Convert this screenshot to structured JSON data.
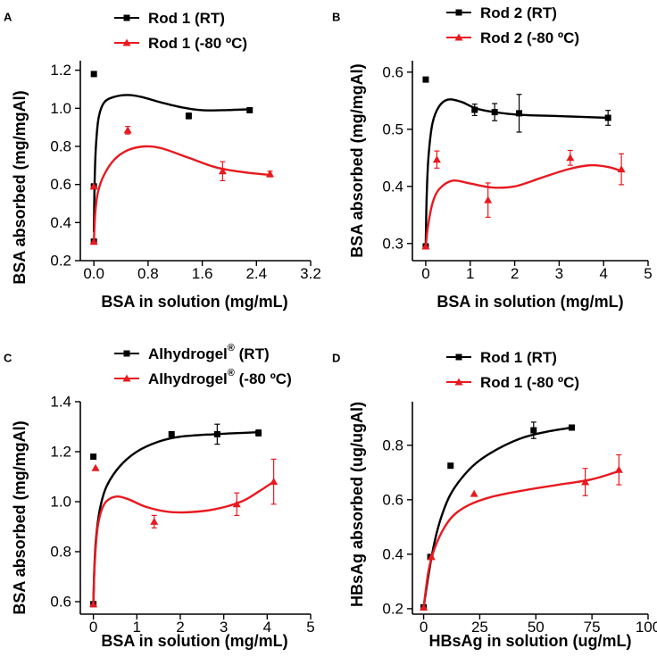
{
  "colors": {
    "rt": "#000000",
    "cold": "#e8191f"
  },
  "chart_data": [
    {
      "type": "scatter",
      "panel_label": "A",
      "xlabel": "BSA in solution (mg/mL)",
      "ylabel": "BSA absorbed (mg/mgAl)",
      "xlim": [
        -0.2,
        3.2
      ],
      "ylim": [
        0.2,
        1.25
      ],
      "xticks": [
        0.0,
        0.8,
        1.6,
        2.4,
        3.2
      ],
      "xtick_labels": [
        "0.0",
        "0.8",
        "1.6",
        "2.4",
        "3.2"
      ],
      "yticks": [
        0.2,
        0.4,
        0.6,
        0.8,
        1.0,
        1.2
      ],
      "ytick_labels": [
        "0.2",
        "0.4",
        "0.6",
        "0.8",
        "1.0",
        "1.2"
      ],
      "series": [
        {
          "name": "Rod 1 (RT)",
          "label": "Rod 1 (RT)",
          "marker": "square",
          "color": "#000000",
          "points": [
            [
              0.0,
              1.18,
              0
            ],
            [
              0.0,
              0.59,
              0
            ],
            [
              0.0,
              0.3,
              0
            ],
            [
              1.4,
              0.96,
              0.015
            ],
            [
              2.3,
              0.99,
              0.005
            ]
          ],
          "fit": [
            [
              0.0,
              0.35
            ],
            [
              0.01,
              0.6
            ],
            [
              0.03,
              0.8
            ],
            [
              0.07,
              0.95
            ],
            [
              0.15,
              1.03
            ],
            [
              0.3,
              1.06
            ],
            [
              0.5,
              1.07
            ],
            [
              0.7,
              1.06
            ],
            [
              1.0,
              1.03
            ],
            [
              1.3,
              1.005
            ],
            [
              1.6,
              0.99
            ],
            [
              1.9,
              0.99
            ],
            [
              2.3,
              0.995
            ]
          ]
        },
        {
          "name": "Rod 1 (-80 ºC)",
          "label": "Rod 1 (-80 ºC)",
          "marker": "triangle",
          "color": "#e8191f",
          "points": [
            [
              0.0,
              0.3,
              0
            ],
            [
              0.0,
              0.59,
              0
            ],
            [
              0.5,
              0.885,
              0.02
            ],
            [
              1.9,
              0.67,
              0.05
            ],
            [
              2.6,
              0.655,
              0.015
            ]
          ],
          "fit": [
            [
              0.0,
              0.3
            ],
            [
              0.02,
              0.45
            ],
            [
              0.06,
              0.56
            ],
            [
              0.15,
              0.65
            ],
            [
              0.3,
              0.73
            ],
            [
              0.5,
              0.78
            ],
            [
              0.75,
              0.8
            ],
            [
              1.0,
              0.79
            ],
            [
              1.4,
              0.74
            ],
            [
              1.8,
              0.69
            ],
            [
              2.2,
              0.665
            ],
            [
              2.6,
              0.65
            ]
          ]
        }
      ]
    },
    {
      "type": "scatter",
      "panel_label": "B",
      "xlabel": "BSA in solution (mg/mL)",
      "ylabel": "BSA absorbed (mg/mgAl)",
      "xlim": [
        -0.3,
        5.0
      ],
      "ylim": [
        0.27,
        0.62
      ],
      "xticks": [
        0,
        1,
        2,
        3,
        4,
        5
      ],
      "xtick_labels": [
        "0",
        "1",
        "2",
        "3",
        "4",
        "5"
      ],
      "yticks": [
        0.3,
        0.4,
        0.5,
        0.6
      ],
      "ytick_labels": [
        "0.3",
        "0.4",
        "0.5",
        "0.6"
      ],
      "series": [
        {
          "name": "Rod 2 (RT)",
          "label": "Rod 2 (RT)",
          "marker": "square",
          "color": "#000000",
          "points": [
            [
              0.0,
              0.587,
              0
            ],
            [
              0.0,
              0.295,
              0
            ],
            [
              1.1,
              0.534,
              0.01
            ],
            [
              1.55,
              0.53,
              0.015
            ],
            [
              2.1,
              0.528,
              0.033
            ],
            [
              4.1,
              0.52,
              0.013
            ]
          ],
          "fit": [
            [
              0.0,
              0.3
            ],
            [
              0.02,
              0.38
            ],
            [
              0.06,
              0.45
            ],
            [
              0.15,
              0.51
            ],
            [
              0.3,
              0.54
            ],
            [
              0.5,
              0.552
            ],
            [
              0.8,
              0.548
            ],
            [
              1.2,
              0.535
            ],
            [
              2.0,
              0.526
            ],
            [
              3.0,
              0.523
            ],
            [
              4.1,
              0.52
            ]
          ]
        },
        {
          "name": "Rod 2 (-80 ºC)",
          "label": "Rod 2 (-80 ºC)",
          "marker": "triangle",
          "color": "#e8191f",
          "points": [
            [
              0.0,
              0.295,
              0
            ],
            [
              0.25,
              0.447,
              0.015
            ],
            [
              1.4,
              0.376,
              0.03
            ],
            [
              3.25,
              0.45,
              0.013
            ],
            [
              4.4,
              0.43,
              0.027
            ]
          ],
          "fit": [
            [
              0.0,
              0.295
            ],
            [
              0.05,
              0.33
            ],
            [
              0.15,
              0.37
            ],
            [
              0.3,
              0.395
            ],
            [
              0.6,
              0.41
            ],
            [
              1.0,
              0.405
            ],
            [
              1.5,
              0.398
            ],
            [
              2.0,
              0.4
            ],
            [
              2.6,
              0.415
            ],
            [
              3.2,
              0.43
            ],
            [
              3.7,
              0.437
            ],
            [
              4.1,
              0.434
            ],
            [
              4.4,
              0.427
            ]
          ]
        }
      ]
    },
    {
      "type": "scatter",
      "panel_label": "C",
      "xlabel": "BSA in solution (mg/mL)",
      "ylabel": "BSA absorbed (mg/mgAl)",
      "xlim": [
        -0.3,
        5.0
      ],
      "ylim": [
        0.55,
        1.4
      ],
      "xticks": [
        0,
        1,
        2,
        3,
        4,
        5
      ],
      "xtick_labels": [
        "0",
        "1",
        "2",
        "3",
        "4",
        "5"
      ],
      "yticks": [
        0.6,
        0.8,
        1.0,
        1.2,
        1.4
      ],
      "ytick_labels": [
        "0.6",
        "0.8",
        "1.0",
        "1.2",
        "1.4"
      ],
      "series": [
        {
          "name": "Alhydrogel® (RT)",
          "label": "Alhydrogel",
          "sup": "®",
          "label_suffix": "(RT)",
          "marker": "square",
          "color": "#000000",
          "points": [
            [
              0.0,
              1.18,
              0
            ],
            [
              0.0,
              0.59,
              0
            ],
            [
              1.8,
              1.27,
              0
            ],
            [
              2.85,
              1.27,
              0.04
            ],
            [
              3.8,
              1.275,
              0.012
            ]
          ],
          "fit": [
            [
              0.0,
              0.59
            ],
            [
              0.02,
              0.72
            ],
            [
              0.06,
              0.85
            ],
            [
              0.15,
              0.97
            ],
            [
              0.3,
              1.06
            ],
            [
              0.6,
              1.14
            ],
            [
              1.0,
              1.2
            ],
            [
              1.5,
              1.24
            ],
            [
              2.0,
              1.26
            ],
            [
              2.8,
              1.27
            ],
            [
              3.8,
              1.278
            ]
          ]
        },
        {
          "name": "Alhydrogel® (-80 ºC)",
          "label": "Alhydrogel",
          "sup": "®",
          "label_suffix": "(-80 ºC)",
          "marker": "triangle",
          "color": "#e8191f",
          "points": [
            [
              0.0,
              0.59,
              0
            ],
            [
              0.05,
              1.135,
              0
            ],
            [
              1.4,
              0.92,
              0.025
            ],
            [
              3.3,
              0.99,
              0.045
            ],
            [
              4.15,
              1.08,
              0.09
            ]
          ],
          "fit": [
            [
              0.0,
              0.59
            ],
            [
              0.03,
              0.75
            ],
            [
              0.1,
              0.9
            ],
            [
              0.25,
              0.99
            ],
            [
              0.5,
              1.02
            ],
            [
              0.8,
              1.01
            ],
            [
              1.2,
              0.98
            ],
            [
              1.7,
              0.96
            ],
            [
              2.2,
              0.958
            ],
            [
              2.8,
              0.97
            ],
            [
              3.4,
              1.0
            ],
            [
              3.8,
              1.04
            ],
            [
              4.15,
              1.08
            ]
          ]
        }
      ]
    },
    {
      "type": "scatter",
      "panel_label": "D",
      "xlabel": "HBsAg in solution (ug/mL)",
      "ylabel": "HBsAg absorbed (ug/ugAl)",
      "xlim": [
        -5,
        100
      ],
      "ylim": [
        0.18,
        0.96
      ],
      "xticks": [
        0,
        25,
        50,
        75,
        100
      ],
      "xtick_labels": [
        "0",
        "25",
        "50",
        "75",
        "100"
      ],
      "yticks": [
        0.2,
        0.4,
        0.6,
        0.8
      ],
      "ytick_labels": [
        "0.2",
        "0.4",
        "0.6",
        "0.8"
      ],
      "series": [
        {
          "name": "Rod 1 (RT)",
          "label": "Rod 1 (RT)",
          "marker": "square",
          "color": "#000000",
          "points": [
            [
              0.0,
              0.205,
              0
            ],
            [
              3.0,
              0.39,
              0
            ],
            [
              12.0,
              0.725,
              0
            ],
            [
              49.0,
              0.855,
              0.03
            ],
            [
              66.0,
              0.865,
              0
            ]
          ],
          "fit": [
            [
              0.0,
              0.205
            ],
            [
              2.5,
              0.34
            ],
            [
              5,
              0.45
            ],
            [
              8,
              0.54
            ],
            [
              12,
              0.62
            ],
            [
              18,
              0.69
            ],
            [
              25,
              0.745
            ],
            [
              35,
              0.795
            ],
            [
              45,
              0.83
            ],
            [
              55,
              0.85
            ],
            [
              66,
              0.865
            ]
          ]
        },
        {
          "name": "Rod 1 (-80 ºC)",
          "label": "Rod 1 (-80 ºC)",
          "marker": "triangle",
          "color": "#e8191f",
          "points": [
            [
              0.0,
              0.205,
              0
            ],
            [
              3.5,
              0.39,
              0
            ],
            [
              22.5,
              0.622,
              0
            ],
            [
              72.0,
              0.665,
              0.05
            ],
            [
              87.0,
              0.71,
              0.055
            ]
          ],
          "fit": [
            [
              0.0,
              0.205
            ],
            [
              2,
              0.33
            ],
            [
              4,
              0.4
            ],
            [
              8,
              0.48
            ],
            [
              13,
              0.54
            ],
            [
              20,
              0.58
            ],
            [
              30,
              0.61
            ],
            [
              45,
              0.635
            ],
            [
              60,
              0.655
            ],
            [
              75,
              0.675
            ],
            [
              87,
              0.705
            ]
          ]
        }
      ]
    }
  ]
}
